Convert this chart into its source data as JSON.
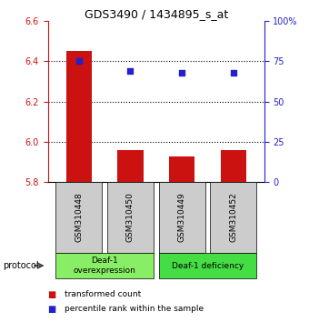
{
  "title": "GDS3490 / 1434895_s_at",
  "samples": [
    "GSM310448",
    "GSM310450",
    "GSM310449",
    "GSM310452"
  ],
  "bar_values": [
    6.45,
    5.96,
    5.925,
    5.96
  ],
  "percentile_values": [
    75,
    69,
    68,
    68
  ],
  "ylim_left": [
    5.8,
    6.6
  ],
  "ylim_right": [
    0,
    100
  ],
  "yticks_left": [
    5.8,
    6.0,
    6.2,
    6.4,
    6.6
  ],
  "yticks_right": [
    0,
    25,
    50,
    75,
    100
  ],
  "ytick_labels_right": [
    "0",
    "25",
    "50",
    "75",
    "100%"
  ],
  "hlines": [
    6.0,
    6.2,
    6.4
  ],
  "bar_color": "#cc1111",
  "square_color": "#2222cc",
  "bar_bottom": 5.8,
  "groups": [
    {
      "label": "Deaf-1\noverexpression",
      "indices": [
        0,
        1
      ],
      "color": "#88ee66"
    },
    {
      "label": "Deaf-1 deficiency",
      "indices": [
        2,
        3
      ],
      "color": "#44dd44"
    }
  ],
  "sample_box_color": "#cccccc",
  "protocol_label": "protocol",
  "legend_items": [
    {
      "color": "#cc1111",
      "label": "transformed count"
    },
    {
      "color": "#2222cc",
      "label": "percentile rank within the sample"
    }
  ],
  "background_color": "#ffffff",
  "left_axis_color": "#cc1111",
  "right_axis_color": "#2222cc",
  "bar_width": 0.5
}
